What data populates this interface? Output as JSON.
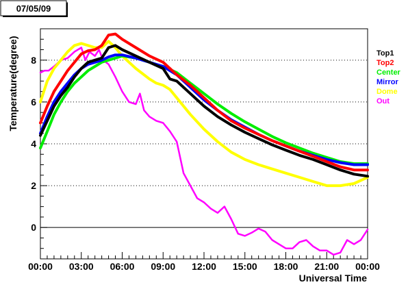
{
  "chart_data": {
    "type": "line",
    "date_label": "07/05/09",
    "title": "",
    "xlabel": "Universal Time",
    "ylabel": "Temperature(degree)",
    "x_unit": "hours",
    "xlim": [
      0,
      24
    ],
    "ylim": [
      -1.5,
      9.5
    ],
    "x_ticks": [
      {
        "value": 0,
        "label": "00:00"
      },
      {
        "value": 3,
        "label": "03:00"
      },
      {
        "value": 6,
        "label": "06:00"
      },
      {
        "value": 9,
        "label": "09:00"
      },
      {
        "value": 12,
        "label": "12:00"
      },
      {
        "value": 15,
        "label": "15:00"
      },
      {
        "value": 18,
        "label": "18:00"
      },
      {
        "value": 21,
        "label": "21:00"
      },
      {
        "value": 24,
        "label": "00:00"
      }
    ],
    "y_ticks": [
      {
        "value": 0,
        "label": "0"
      },
      {
        "value": 2,
        "label": "2"
      },
      {
        "value": 4,
        "label": "4"
      },
      {
        "value": 6,
        "label": "6"
      },
      {
        "value": 8,
        "label": "8"
      }
    ],
    "grid": "horizontal dotted at labeled y ticks",
    "legend_position": "right",
    "series": [
      {
        "name": "Top1",
        "color": "#000000",
        "x": [
          0,
          0.5,
          1,
          1.5,
          2,
          2.5,
          3,
          3.5,
          4,
          4.5,
          5,
          5.5,
          6,
          7,
          8,
          9,
          9.5,
          10,
          11,
          12,
          13,
          14,
          15,
          16,
          17,
          18,
          19,
          20,
          21,
          22,
          23,
          24
        ],
        "y": [
          4.4,
          5.1,
          5.8,
          6.3,
          6.7,
          7.2,
          7.6,
          7.9,
          8.0,
          8.1,
          8.6,
          8.7,
          8.5,
          8.2,
          7.9,
          7.6,
          7.1,
          7.0,
          6.4,
          5.8,
          5.3,
          4.9,
          4.55,
          4.25,
          3.95,
          3.7,
          3.45,
          3.25,
          3.0,
          2.75,
          2.55,
          2.45
        ]
      },
      {
        "name": "Top2",
        "color": "#ff0000",
        "x": [
          0,
          0.5,
          1,
          1.5,
          2,
          2.5,
          3,
          3.5,
          4,
          4.5,
          5,
          5.5,
          6,
          7,
          8,
          9,
          9.5,
          10,
          11,
          12,
          13,
          14,
          15,
          16,
          17,
          18,
          19,
          20,
          21,
          22,
          23,
          24
        ],
        "y": [
          5.0,
          5.8,
          6.5,
          7.0,
          7.5,
          7.9,
          8.3,
          8.45,
          8.5,
          8.7,
          9.2,
          9.25,
          9.0,
          8.6,
          8.2,
          7.9,
          7.6,
          7.3,
          6.8,
          6.2,
          5.6,
          5.1,
          4.75,
          4.45,
          4.15,
          3.9,
          3.65,
          3.4,
          3.15,
          2.9,
          2.75,
          2.75
        ]
      },
      {
        "name": "Center",
        "color": "#00ee00",
        "x": [
          0,
          0.5,
          1,
          1.5,
          2,
          2.5,
          3,
          3.5,
          4,
          4.5,
          5,
          5.5,
          6,
          7,
          8,
          9,
          10,
          11,
          12,
          13,
          14,
          15,
          16,
          17,
          18,
          19,
          20,
          21,
          22,
          23,
          24
        ],
        "y": [
          3.8,
          4.6,
          5.4,
          6.0,
          6.5,
          6.9,
          7.2,
          7.5,
          7.7,
          7.9,
          8.0,
          8.1,
          8.2,
          8.1,
          7.9,
          7.7,
          7.4,
          6.9,
          6.4,
          5.9,
          5.45,
          5.05,
          4.7,
          4.35,
          4.05,
          3.8,
          3.55,
          3.35,
          3.15,
          3.05,
          3.05
        ]
      },
      {
        "name": "Mirror",
        "color": "#0000ff",
        "x": [
          0,
          0.5,
          1,
          1.5,
          2,
          2.5,
          3,
          3.5,
          4,
          4.5,
          5,
          5.5,
          6,
          7,
          8,
          9,
          10,
          11,
          12,
          13,
          14,
          15,
          16,
          17,
          18,
          19,
          20,
          21,
          22,
          23,
          24
        ],
        "y": [
          4.5,
          5.3,
          6.0,
          6.5,
          6.9,
          7.3,
          7.6,
          7.8,
          7.9,
          8.0,
          8.15,
          8.25,
          8.25,
          8.1,
          7.9,
          7.7,
          7.3,
          6.7,
          6.1,
          5.6,
          5.15,
          4.8,
          4.45,
          4.15,
          3.9,
          3.65,
          3.45,
          3.25,
          3.1,
          3.0,
          3.0
        ]
      },
      {
        "name": "Dome",
        "color": "#ffff00",
        "x": [
          0,
          0.5,
          1,
          1.5,
          2,
          2.5,
          3,
          3.5,
          4,
          4.5,
          5,
          5.5,
          6,
          7,
          8,
          8.5,
          9,
          9.5,
          10,
          11,
          12,
          13,
          14,
          15,
          16,
          17,
          18,
          19,
          20,
          21,
          22,
          23,
          24
        ],
        "y": [
          6.0,
          7.0,
          7.6,
          8.0,
          8.4,
          8.7,
          8.8,
          8.7,
          8.6,
          8.6,
          8.9,
          8.6,
          8.2,
          7.6,
          7.1,
          6.9,
          6.8,
          6.6,
          6.2,
          5.4,
          4.7,
          4.1,
          3.6,
          3.25,
          3.0,
          2.8,
          2.6,
          2.4,
          2.2,
          2.0,
          2.0,
          2.1,
          2.4
        ]
      },
      {
        "name": "Out",
        "color": "#ff00ff",
        "x": [
          0,
          0.3,
          0.6,
          1,
          1.5,
          2,
          2.5,
          3,
          3.3,
          3.6,
          4,
          4.3,
          4.6,
          5,
          5.5,
          6,
          6.5,
          7,
          7.3,
          7.6,
          8,
          8.5,
          9,
          9.5,
          10,
          10.5,
          11,
          11.5,
          12,
          12.5,
          13,
          13.5,
          14,
          14.5,
          15,
          15.5,
          16,
          16.5,
          17,
          17.5,
          18,
          18.5,
          19,
          19.5,
          20,
          20.5,
          21,
          21.5,
          22,
          22.5,
          23,
          23.5,
          24
        ],
        "y": [
          7.4,
          7.5,
          7.5,
          7.7,
          8.0,
          8.1,
          8.4,
          8.6,
          8.0,
          8.4,
          8.2,
          8.5,
          8.0,
          7.8,
          7.2,
          6.5,
          6.0,
          5.9,
          6.4,
          5.6,
          5.3,
          5.1,
          5.0,
          4.6,
          4.1,
          2.6,
          2.0,
          1.4,
          1.2,
          0.9,
          0.7,
          1.0,
          0.4,
          -0.3,
          -0.4,
          -0.25,
          -0.05,
          -0.2,
          -0.6,
          -0.8,
          -1.0,
          -1.0,
          -0.7,
          -0.6,
          -0.9,
          -1.1,
          -1.1,
          -1.3,
          -1.2,
          -0.6,
          -0.8,
          -0.6,
          -0.1
        ]
      }
    ]
  }
}
